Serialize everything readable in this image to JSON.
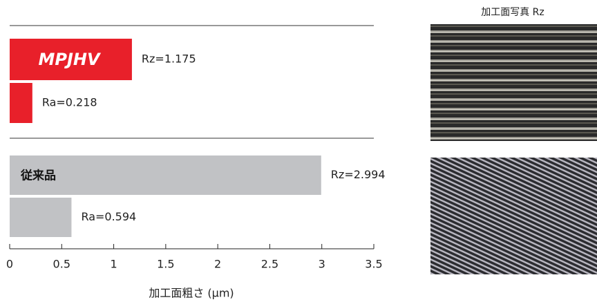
{
  "chart_data": {
    "type": "bar",
    "orientation": "horizontal",
    "series": [
      {
        "name": "MPJHV",
        "color": "#e8202a",
        "values": [
          1.175,
          0.218
        ],
        "value_labels": [
          "Rz=1.175",
          "Ra=0.218"
        ]
      },
      {
        "name": "従来品",
        "color": "#c1c2c5",
        "values": [
          2.994,
          0.594
        ],
        "value_labels": [
          "Rz=2.994",
          "Ra=0.594"
        ]
      }
    ],
    "xlim": [
      0,
      3.5
    ],
    "xticks": [
      0,
      0.5,
      1,
      1.5,
      2,
      2.5,
      3,
      3.5
    ],
    "xlabel": "加工面粗さ (μm)",
    "photo_title": "加工面写真 Rz"
  }
}
